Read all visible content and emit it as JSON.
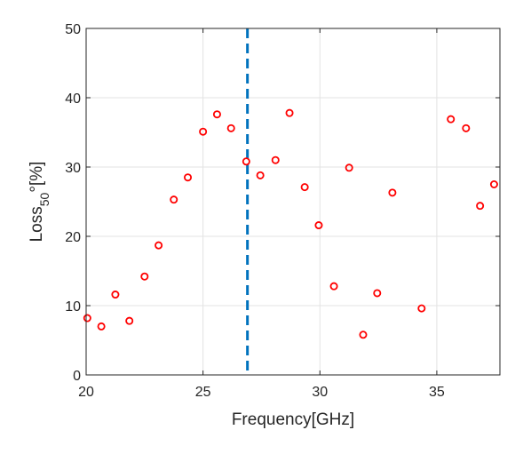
{
  "chart_data": {
    "type": "scatter",
    "xlabel": "Frequency[GHz]",
    "ylabel_main": "Loss",
    "ylabel_sub": "50",
    "ylabel_tail": "°[%]",
    "xlim": [
      20,
      37.7
    ],
    "ylim": [
      0,
      50
    ],
    "xticks": [
      20,
      25,
      30,
      35
    ],
    "yticks": [
      0,
      10,
      20,
      30,
      40,
      50
    ],
    "grid": true,
    "marker_color": "#ff0000",
    "vline": {
      "x": 26.9,
      "color": "#0072bd",
      "style": "dashed"
    },
    "points": [
      {
        "x": 20.05,
        "y": 8.2
      },
      {
        "x": 20.65,
        "y": 7.0
      },
      {
        "x": 21.25,
        "y": 11.6
      },
      {
        "x": 21.85,
        "y": 7.8
      },
      {
        "x": 22.5,
        "y": 14.2
      },
      {
        "x": 23.1,
        "y": 18.7
      },
      {
        "x": 23.75,
        "y": 25.3
      },
      {
        "x": 24.35,
        "y": 28.5
      },
      {
        "x": 25.0,
        "y": 35.1
      },
      {
        "x": 25.6,
        "y": 37.6
      },
      {
        "x": 26.2,
        "y": 35.6
      },
      {
        "x": 26.85,
        "y": 30.8
      },
      {
        "x": 27.45,
        "y": 28.8
      },
      {
        "x": 28.1,
        "y": 31.0
      },
      {
        "x": 28.7,
        "y": 37.8
      },
      {
        "x": 29.35,
        "y": 27.1
      },
      {
        "x": 29.95,
        "y": 21.6
      },
      {
        "x": 30.6,
        "y": 12.8
      },
      {
        "x": 31.25,
        "y": 29.9
      },
      {
        "x": 31.85,
        "y": 5.8
      },
      {
        "x": 32.45,
        "y": 11.8
      },
      {
        "x": 33.1,
        "y": 26.3
      },
      {
        "x": 34.35,
        "y": 9.6
      },
      {
        "x": 35.6,
        "y": 36.9
      },
      {
        "x": 36.25,
        "y": 35.6
      },
      {
        "x": 36.85,
        "y": 24.4
      },
      {
        "x": 37.45,
        "y": 27.5
      }
    ]
  }
}
